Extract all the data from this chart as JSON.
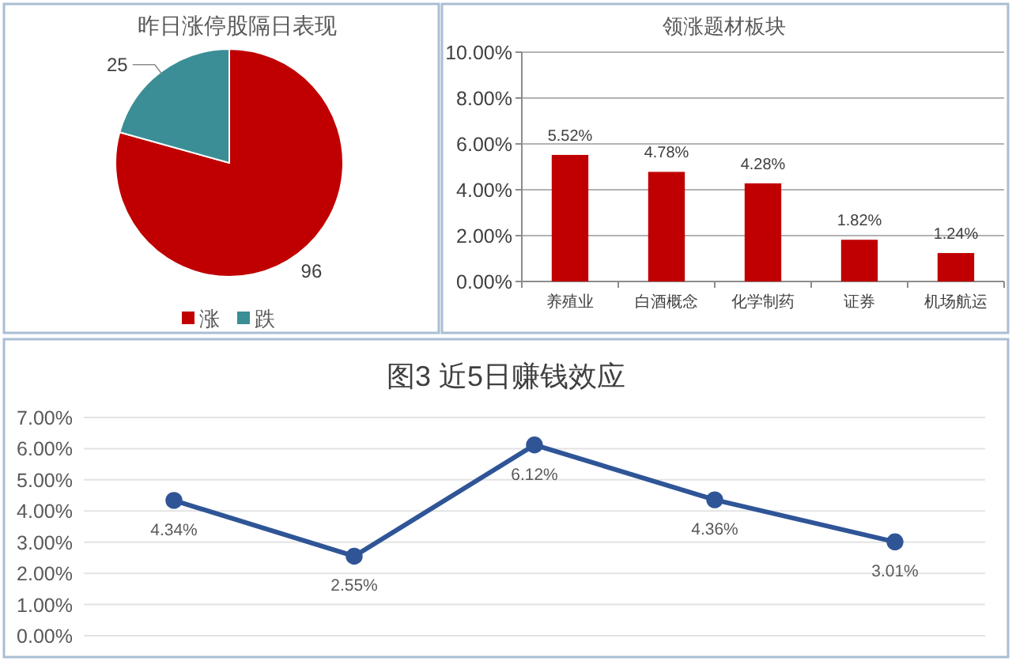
{
  "chart_data": [
    {
      "type": "pie",
      "title": "昨日涨停股隔日表现",
      "categories": [
        "涨",
        "跌"
      ],
      "values": [
        96,
        25
      ],
      "colors": [
        "#c00000",
        "#3b8e96"
      ],
      "data_labels": true,
      "legend": "bottom"
    },
    {
      "type": "bar",
      "title": "领涨题材板块",
      "categories": [
        "养殖业",
        "白酒概念",
        "化学制药",
        "证券",
        "机场航运"
      ],
      "values": [
        5.52,
        4.78,
        4.28,
        1.82,
        1.24
      ],
      "color": "#c00000",
      "value_labels": [
        "5.52%",
        "4.78%",
        "4.28%",
        "1.82%",
        "1.24%"
      ],
      "ylim": [
        0,
        10
      ],
      "yticks": [
        {
          "value": 0,
          "label": "0.00%"
        },
        {
          "value": 2,
          "label": "2.00%"
        },
        {
          "value": 4,
          "label": "4.00%"
        },
        {
          "value": 6,
          "label": "6.00%"
        },
        {
          "value": 8,
          "label": "8.00%"
        },
        {
          "value": 10,
          "label": "10.00%"
        }
      ],
      "grid": "y"
    },
    {
      "type": "line",
      "title": "图3 近5日赚钱效应",
      "categories": [
        null,
        null,
        null,
        null,
        null
      ],
      "values": [
        4.34,
        2.55,
        6.12,
        4.36,
        3.01
      ],
      "color": "#2f5597",
      "value_labels": [
        "4.34%",
        "2.55%",
        "6.12%",
        "4.36%",
        "3.01%"
      ],
      "marker": "circle",
      "line_style": "solid",
      "ylim": [
        0,
        7
      ],
      "yticks": [
        {
          "value": 0,
          "label": "0.00%"
        },
        {
          "value": 1,
          "label": "1.00%"
        },
        {
          "value": 2,
          "label": "2.00%"
        },
        {
          "value": 3,
          "label": "3.00%"
        },
        {
          "value": 4,
          "label": "4.00%"
        },
        {
          "value": 5,
          "label": "5.00%"
        },
        {
          "value": 6,
          "label": "6.00%"
        },
        {
          "value": 7,
          "label": "7.00%"
        }
      ],
      "grid": "y"
    }
  ]
}
